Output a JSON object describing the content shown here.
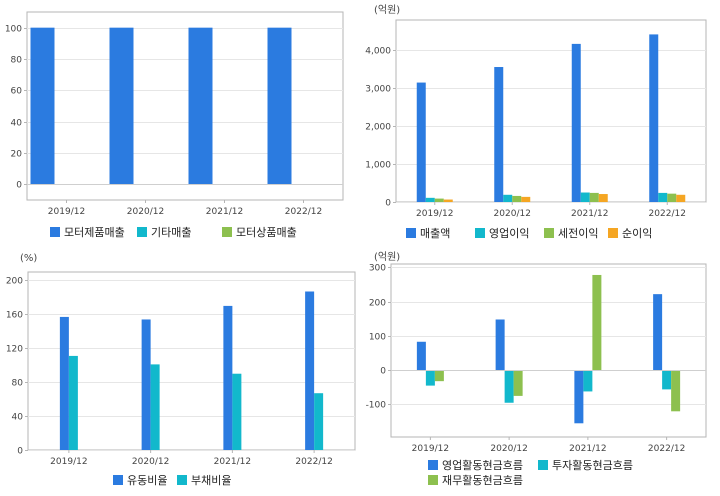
{
  "colors": {
    "blue": "#2b7be0",
    "cyan": "#12b8cc",
    "green": "#8dc04f",
    "orange": "#f5a623",
    "grid": "#e6e6e6",
    "frame": "#b5b5b5"
  },
  "chart_data": [
    {
      "type": "bar",
      "unit_label": "",
      "categories": [
        "2019/12",
        "2020/12",
        "2021/12",
        "2022/12"
      ],
      "ylim": [
        -10,
        110
      ],
      "yticks": [
        0,
        20,
        40,
        60,
        80,
        100
      ],
      "ytick_labels": [
        "0",
        "20",
        "40",
        "60",
        "80",
        "100"
      ],
      "grid": true,
      "legend_position": "bottom",
      "series": [
        {
          "name": "모터제품매출",
          "color": "#2b7be0",
          "values": [
            100,
            100,
            100,
            100
          ]
        },
        {
          "name": "기타매출",
          "color": "#12b8cc",
          "values": [
            0,
            0,
            0,
            0
          ]
        },
        {
          "name": "모터상품매출",
          "color": "#8dc04f",
          "values": [
            0,
            0,
            0,
            0
          ]
        }
      ]
    },
    {
      "type": "bar",
      "unit_label": "(억원)",
      "categories": [
        "2019/12",
        "2020/12",
        "2021/12",
        "2022/12"
      ],
      "ylim": [
        0,
        4800
      ],
      "yticks": [
        0,
        1000,
        2000,
        3000,
        4000
      ],
      "ytick_labels": [
        "0",
        "1,000",
        "2,000",
        "3,000",
        "4,000"
      ],
      "grid": true,
      "legend_position": "bottom",
      "series": [
        {
          "name": "매출액",
          "color": "#2b7be0",
          "values": [
            3150,
            3560,
            4170,
            4420
          ]
        },
        {
          "name": "영업이익",
          "color": "#12b8cc",
          "values": [
            110,
            190,
            250,
            240
          ]
        },
        {
          "name": "세전이익",
          "color": "#8dc04f",
          "values": [
            90,
            160,
            240,
            220
          ]
        },
        {
          "name": "순이익",
          "color": "#f5a623",
          "values": [
            65,
            135,
            210,
            190
          ]
        }
      ]
    },
    {
      "type": "bar",
      "unit_label": "(%)",
      "categories": [
        "2019/12",
        "2020/12",
        "2021/12",
        "2022/12"
      ],
      "ylim": [
        0,
        210
      ],
      "yticks": [
        0,
        40,
        80,
        120,
        160,
        200
      ],
      "ytick_labels": [
        "0",
        "40",
        "80",
        "120",
        "160",
        "200"
      ],
      "grid": true,
      "legend_position": "bottom",
      "series": [
        {
          "name": "유동비율",
          "color": "#2b7be0",
          "values": [
            157,
            154,
            170,
            187
          ]
        },
        {
          "name": "부채비율",
          "color": "#12b8cc",
          "values": [
            111,
            101,
            90,
            67
          ]
        }
      ]
    },
    {
      "type": "bar",
      "unit_label": "(억원)",
      "categories": [
        "2019/12",
        "2020/12",
        "2021/12",
        "2022/12"
      ],
      "ylim": [
        -195,
        310
      ],
      "yticks": [
        -100,
        0,
        100,
        200,
        300
      ],
      "ytick_labels": [
        "-100",
        "0",
        "100",
        "200",
        "300"
      ],
      "grid": true,
      "legend_position": "bottom",
      "series": [
        {
          "name": "영업활동현금흐름",
          "color": "#2b7be0",
          "values": [
            83,
            148,
            -155,
            222
          ]
        },
        {
          "name": "투자활동현금흐름",
          "color": "#12b8cc",
          "values": [
            -45,
            -95,
            -62,
            -56
          ]
        },
        {
          "name": "재무활동현금흐름",
          "color": "#8dc04f",
          "values": [
            -32,
            -75,
            278,
            -120
          ]
        }
      ]
    }
  ]
}
